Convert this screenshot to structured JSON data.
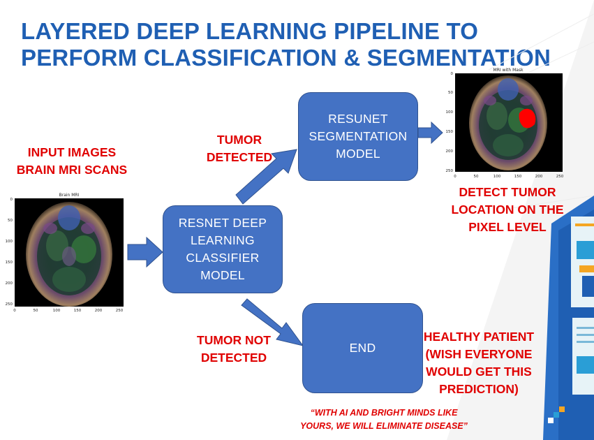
{
  "title": {
    "line1": "LAYERED DEEP LEARNING PIPELINE TO",
    "line2": "PERFORM CLASSIFICATION & SEGMENTATION"
  },
  "input_label": {
    "line1": "INPUT IMAGES",
    "line2": "BRAIN MRI SCANS"
  },
  "brain_mri_plot": {
    "title": "Brain MRI",
    "y_ticks": [
      "0",
      "50",
      "100",
      "150",
      "200",
      "250"
    ],
    "x_ticks": [
      "0",
      "50",
      "100",
      "150",
      "200",
      "250"
    ]
  },
  "mask_plot": {
    "title": "MRI with Mask",
    "y_ticks": [
      "0",
      "50",
      "100",
      "150",
      "200",
      "250"
    ],
    "x_ticks": [
      "0",
      "50",
      "100",
      "150",
      "200",
      "250"
    ]
  },
  "classifier_box": {
    "lines": [
      "RESNET DEEP",
      "LEARNING",
      "CLASSIFIER",
      "MODEL"
    ]
  },
  "segmentation_box": {
    "lines": [
      "RESUNET",
      "SEGMENTATION",
      "MODEL"
    ]
  },
  "end_box": {
    "label": "END"
  },
  "tumor_detected": {
    "line1": "TUMOR",
    "line2": "DETECTED"
  },
  "tumor_not_detected": {
    "line1": "TUMOR NOT",
    "line2": "DETECTED"
  },
  "detect_location": {
    "line1": "DETECT TUMOR",
    "line2": "LOCATION ON THE",
    "line3": "PIXEL LEVEL"
  },
  "healthy_patient": {
    "line1": "HEALTHY PATIENT",
    "line2": "(WISH EVERYONE",
    "line3": "WOULD GET THIS",
    "line4": "PREDICTION)"
  },
  "quote": {
    "line1": "“WITH AI AND BRIGHT MINDS LIKE",
    "line2": "YOURS, WE WILL ELIMINATE DISEASE”"
  },
  "colors": {
    "title": "#1f5fb3",
    "label_red": "#e00000",
    "box_fill": "#4472c4",
    "box_border": "#2f528f",
    "arrow_fill": "#4472c4"
  }
}
